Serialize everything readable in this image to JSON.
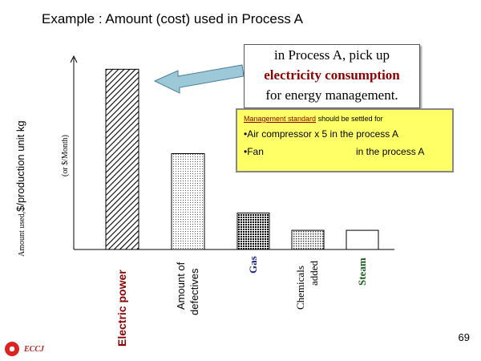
{
  "title": "Example : Amount (cost) used in Process A",
  "callout": {
    "line1": "in Process A, pick up",
    "line2": "electricity consumption",
    "line3": "for energy management."
  },
  "management": {
    "heading_underlined": "Management standard",
    "heading_rest": " should be settled for",
    "item1": "•Air compressor x 5 in the process A",
    "item2_left": "•Fan",
    "item2_right": "in the process A"
  },
  "page_number": "69",
  "logo_text": "ECCJ",
  "colors": {
    "electric": "#8b0000",
    "gas": "#1a237e",
    "steam": "#1b5e20"
  },
  "chart_data": {
    "type": "bar",
    "title": "Example : Amount (cost) used in Process A",
    "ylabel_main": "$/production unit kg",
    "ylabel_prefix": "Amount used,",
    "ylabel_sub": "(or $/Month)",
    "ylim": [
      0,
      100
    ],
    "categories": [
      "Electric power",
      "Amount of defectives",
      "Gas",
      "Chemicals added",
      "Steam"
    ],
    "category_lines": [
      [
        "Electric power"
      ],
      [
        "Amount of",
        "defectives"
      ],
      [
        "Gas"
      ],
      [
        "Chemicals",
        "added"
      ],
      [
        "Steam"
      ]
    ],
    "values": [
      94,
      50,
      19,
      10,
      10
    ],
    "patterns": [
      "diag",
      "dots",
      "grid",
      "dots2",
      "none"
    ]
  }
}
